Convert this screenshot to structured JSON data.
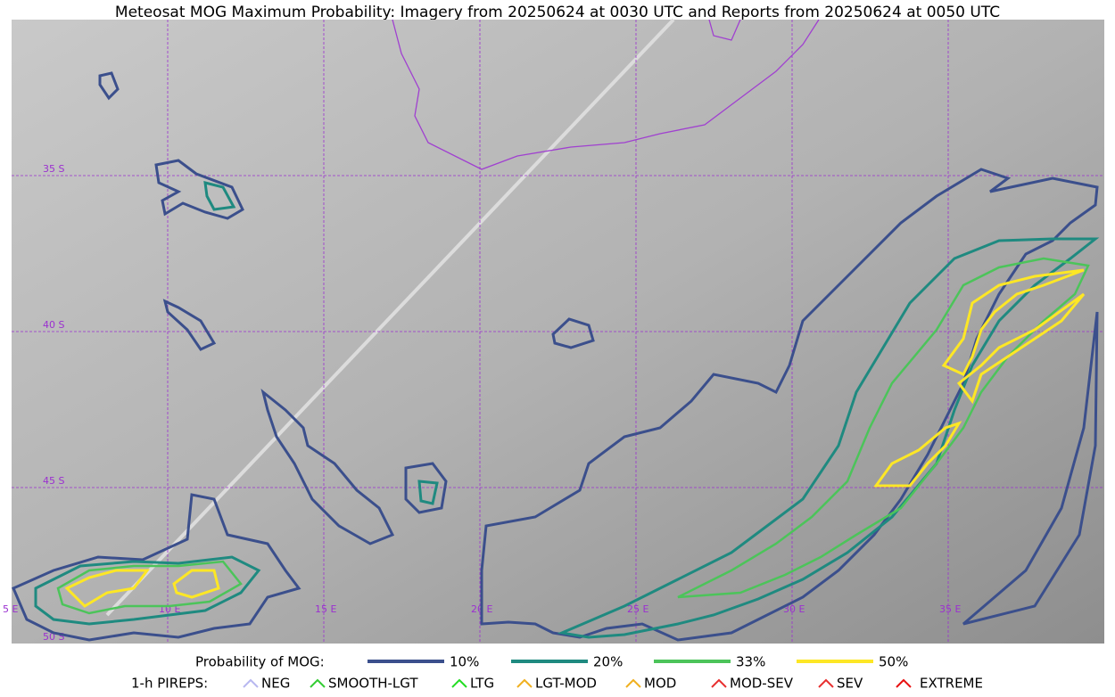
{
  "title": "Meteosat MOG Maximum Probability: Imagery from 20250624 at 0030 UTC and Reports from 20250624 at 0050 UTC",
  "grid_labels": {
    "latitude": [
      "35 S",
      "40 S",
      "45 S",
      "50 S"
    ],
    "longitude": [
      "5 E",
      "10 E",
      "15 E",
      "20 E",
      "25 E",
      "30 E",
      "35 E"
    ]
  },
  "legend": {
    "probability_label": "Probability of MOG:",
    "probability_levels": [
      {
        "label": "10%",
        "color": "#3b4f8c"
      },
      {
        "label": "20%",
        "color": "#1f8a80"
      },
      {
        "label": "33%",
        "color": "#4cc45a"
      },
      {
        "label": "50%",
        "color": "#fde725"
      }
    ],
    "pireps_label": "1-h PIREPS:",
    "pireps": [
      {
        "label": "NEG",
        "color": "#b8b8f0"
      },
      {
        "label": "SMOOTH-LGT",
        "color": "#33cc33"
      },
      {
        "label": "LTG",
        "color": "#22dd22"
      },
      {
        "label": "LGT-MOD",
        "color": "#f0b020"
      },
      {
        "label": "MOD",
        "color": "#f0b020"
      },
      {
        "label": "MOD-SEV",
        "color": "#e83030"
      },
      {
        "label": "SEV",
        "color": "#e83030"
      },
      {
        "label": "EXTREME",
        "color": "#e81010"
      }
    ]
  }
}
